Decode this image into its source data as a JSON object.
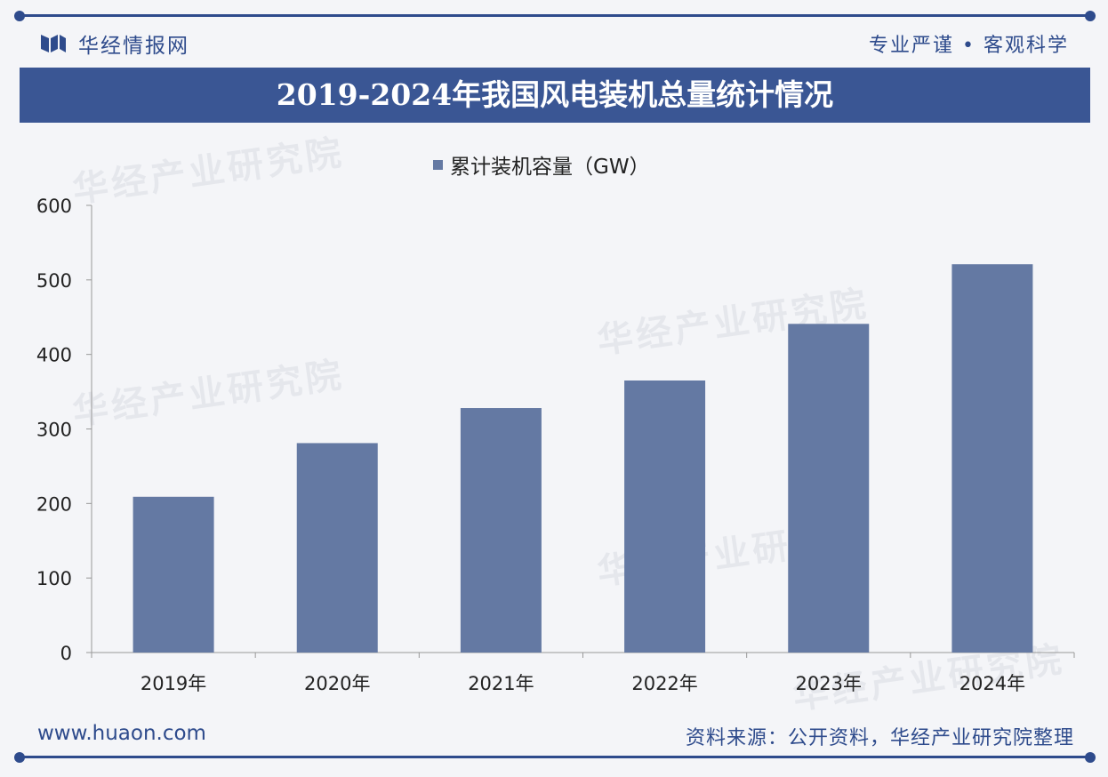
{
  "header": {
    "brand": "华经情报网",
    "slogan": "专业严谨 • 客观科学"
  },
  "colors": {
    "brand": "#2e4b8c",
    "bar": "#6479a3",
    "title_bg": "#3a5694"
  },
  "footer": {
    "url": "www.huaon.com",
    "source": "资料来源：公开资料，华经产业研究院整理"
  },
  "watermark": {
    "text": "华经产业研究院",
    "url": "www.huaon.com"
  },
  "chart_data": {
    "type": "bar",
    "title": "2019-2024年我国风电装机总量统计情况",
    "categories": [
      "2019年",
      "2020年",
      "2021年",
      "2022年",
      "2023年",
      "2024年"
    ],
    "series": [
      {
        "name": "累计装机容量（GW）",
        "values": [
          209,
          281,
          328,
          365,
          441,
          521
        ]
      }
    ],
    "ylim": [
      0,
      600
    ],
    "yticks": [
      0,
      100,
      200,
      300,
      400,
      500,
      600
    ],
    "grid": false,
    "legend": "top-center"
  }
}
